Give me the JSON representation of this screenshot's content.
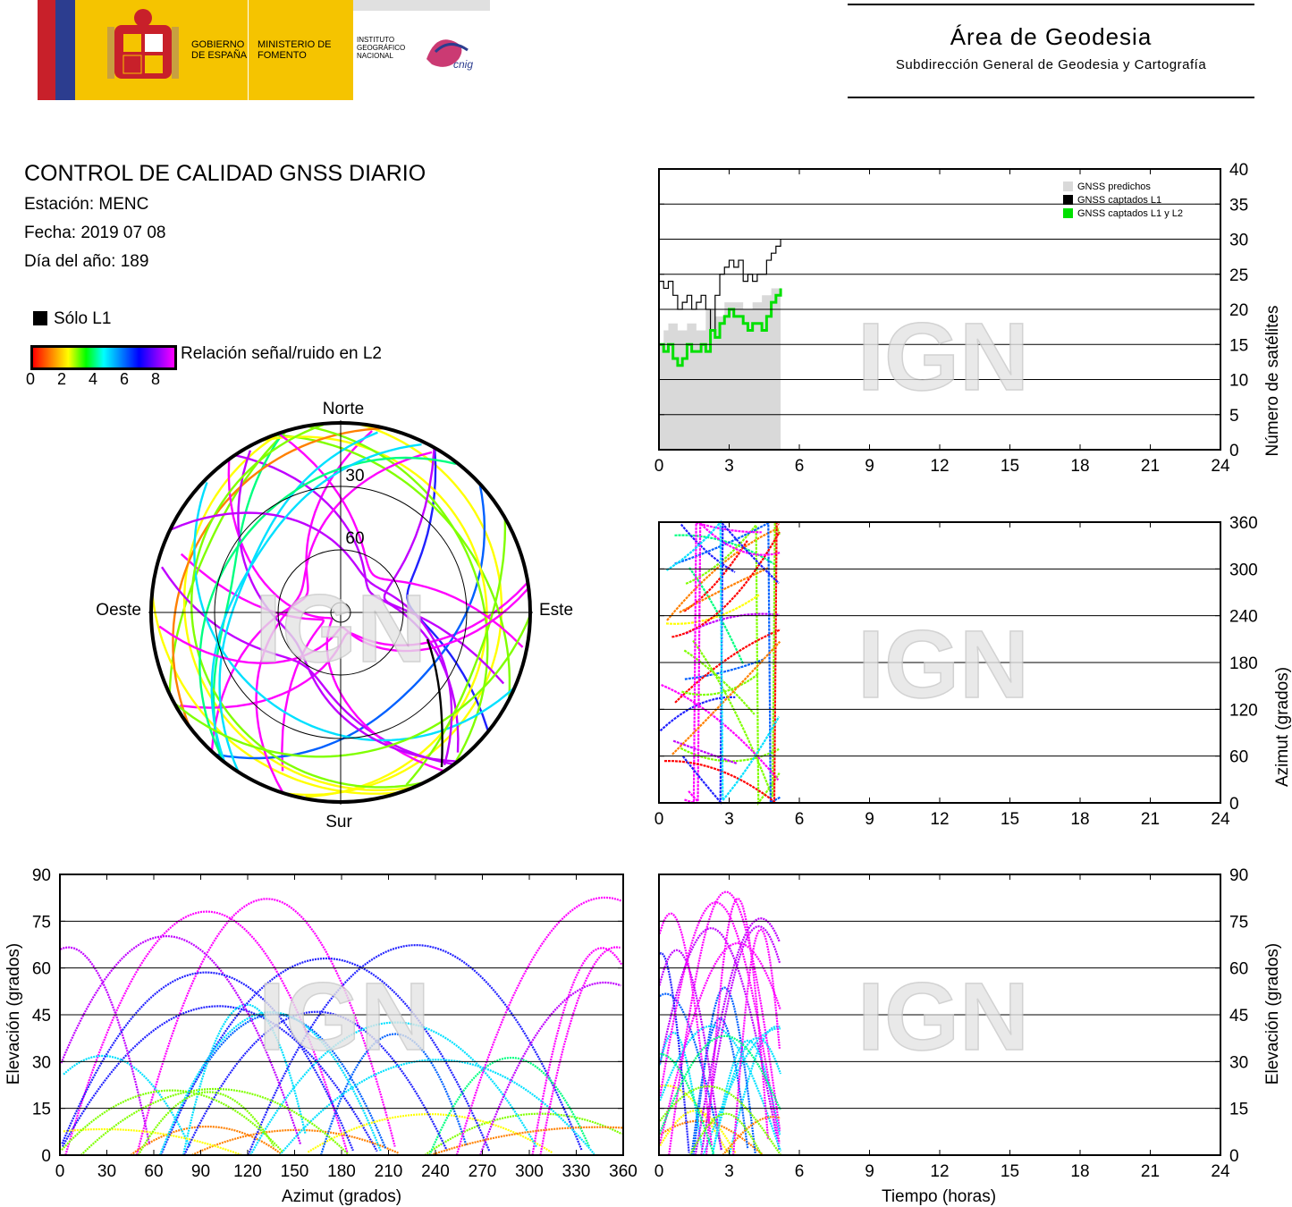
{
  "header": {
    "gov_label": "GOBIERNO DE ESPAÑA",
    "ministry_label": "MINISTERIO DE FOMENTO",
    "institute_label": "INSTITUTO GEOGRÁFICO NACIONAL",
    "cnig_label": "cnig",
    "area_title": "Área de Geodesia",
    "area_subtitle": "Subdirección General de Geodesia y Cartografía"
  },
  "report": {
    "title": "CONTROL DE CALIDAD GNSS DIARIO",
    "station": "Estación: MENC",
    "date": "Fecha: 2019 07 08",
    "doy": "Día del año: 189"
  },
  "legend": {
    "solo_l1": "Sólo L1",
    "snr_label": "Relación señal/ruido en L2",
    "snr_ticks": [
      "0",
      "2",
      "4",
      "6",
      "8"
    ]
  },
  "watermark": "IGN",
  "colors": {
    "predicted": "#d9d9d9",
    "l1": "#000000",
    "l1l2": "#00e000",
    "snr_gradient": [
      "#ff0000",
      "#ff8000",
      "#ffff00",
      "#00ff00",
      "#00ffff",
      "#0060ff",
      "#0000ff",
      "#ff00ff"
    ]
  },
  "chart_data": [
    {
      "type": "area",
      "id": "satellite-count",
      "ylabel": "Número de satélites",
      "xlim": [
        0,
        24
      ],
      "ylim": [
        0,
        40
      ],
      "xticks": [
        "0",
        "3",
        "6",
        "9",
        "12",
        "15",
        "18",
        "21",
        "24"
      ],
      "yticks": [
        "0",
        "5",
        "10",
        "15",
        "20",
        "25",
        "30",
        "35",
        "40"
      ],
      "grid": true,
      "legend_position": "top-right",
      "legend": [
        "GNSS predichos",
        "GNSS captados L1",
        "GNSS captados L1 y L2"
      ],
      "series": [
        {
          "name": "GNSS predichos",
          "x": [
            0,
            0.2,
            0.4,
            0.8,
            1.2,
            1.6,
            2.0,
            2.4,
            2.8,
            3.2,
            3.6,
            4.0,
            4.4,
            4.8,
            5.2
          ],
          "values": [
            15,
            17,
            18,
            17,
            18,
            17,
            20,
            19,
            21,
            21,
            20,
            21,
            22,
            23,
            24
          ]
        },
        {
          "name": "GNSS captados L1",
          "x": [
            0,
            0.2,
            0.4,
            0.6,
            0.8,
            1.0,
            1.2,
            1.4,
            1.6,
            1.8,
            2.0,
            2.2,
            2.4,
            2.6,
            2.8,
            3.0,
            3.2,
            3.4,
            3.6,
            3.8,
            4.0,
            4.2,
            4.4,
            4.6,
            4.8,
            5.0,
            5.2
          ],
          "values": [
            24,
            23,
            24,
            22,
            20,
            21,
            22,
            20,
            21,
            22,
            20,
            17,
            22,
            25,
            26,
            27,
            26,
            27,
            24,
            25,
            24,
            25,
            25,
            27,
            28,
            29,
            30
          ]
        },
        {
          "name": "GNSS captados L1 y L2",
          "x": [
            0,
            0.2,
            0.4,
            0.6,
            0.8,
            1.0,
            1.2,
            1.4,
            1.6,
            1.8,
            2.0,
            2.2,
            2.4,
            2.6,
            2.8,
            3.0,
            3.2,
            3.4,
            3.6,
            3.8,
            4.0,
            4.2,
            4.4,
            4.6,
            4.8,
            5.0,
            5.2
          ],
          "values": [
            15,
            14,
            15,
            13,
            12,
            13,
            15,
            14,
            14,
            15,
            14,
            17,
            16,
            18,
            19,
            20,
            19,
            19,
            18,
            17,
            18,
            18,
            17,
            19,
            21,
            22,
            23
          ]
        }
      ]
    },
    {
      "type": "scatter",
      "id": "azimuth-time",
      "ylabel": "Azimut (grados)",
      "xlim": [
        0,
        24
      ],
      "ylim": [
        0,
        360
      ],
      "xticks": [
        "0",
        "3",
        "6",
        "9",
        "12",
        "15",
        "18",
        "21",
        "24"
      ],
      "yticks": [
        "0",
        "60",
        "120",
        "180",
        "240",
        "300",
        "360"
      ]
    },
    {
      "type": "scatter",
      "id": "elevation-azimuth",
      "xlabel": "Azimut (grados)",
      "ylabel": "Elevación (grados)",
      "xlim": [
        0,
        360
      ],
      "ylim": [
        0,
        90
      ],
      "xticks": [
        "0",
        "30",
        "60",
        "90",
        "120",
        "150",
        "180",
        "210",
        "240",
        "270",
        "300",
        "330",
        "360"
      ],
      "yticks": [
        "0",
        "15",
        "30",
        "45",
        "60",
        "75",
        "90"
      ]
    },
    {
      "type": "scatter",
      "id": "elevation-time",
      "xlabel": "Tiempo (horas)",
      "ylabel": "Elevación (grados)",
      "xlim": [
        0,
        24
      ],
      "ylim": [
        0,
        90
      ],
      "xticks": [
        "0",
        "3",
        "6",
        "9",
        "12",
        "15",
        "18",
        "21",
        "24"
      ],
      "yticks": [
        "0",
        "15",
        "30",
        "45",
        "60",
        "75",
        "90"
      ]
    },
    {
      "type": "scatter",
      "id": "skyplot",
      "labels": {
        "north": "Norte",
        "south": "Sur",
        "east": "Este",
        "west": "Oeste"
      },
      "rings": [
        "30",
        "60"
      ]
    }
  ]
}
